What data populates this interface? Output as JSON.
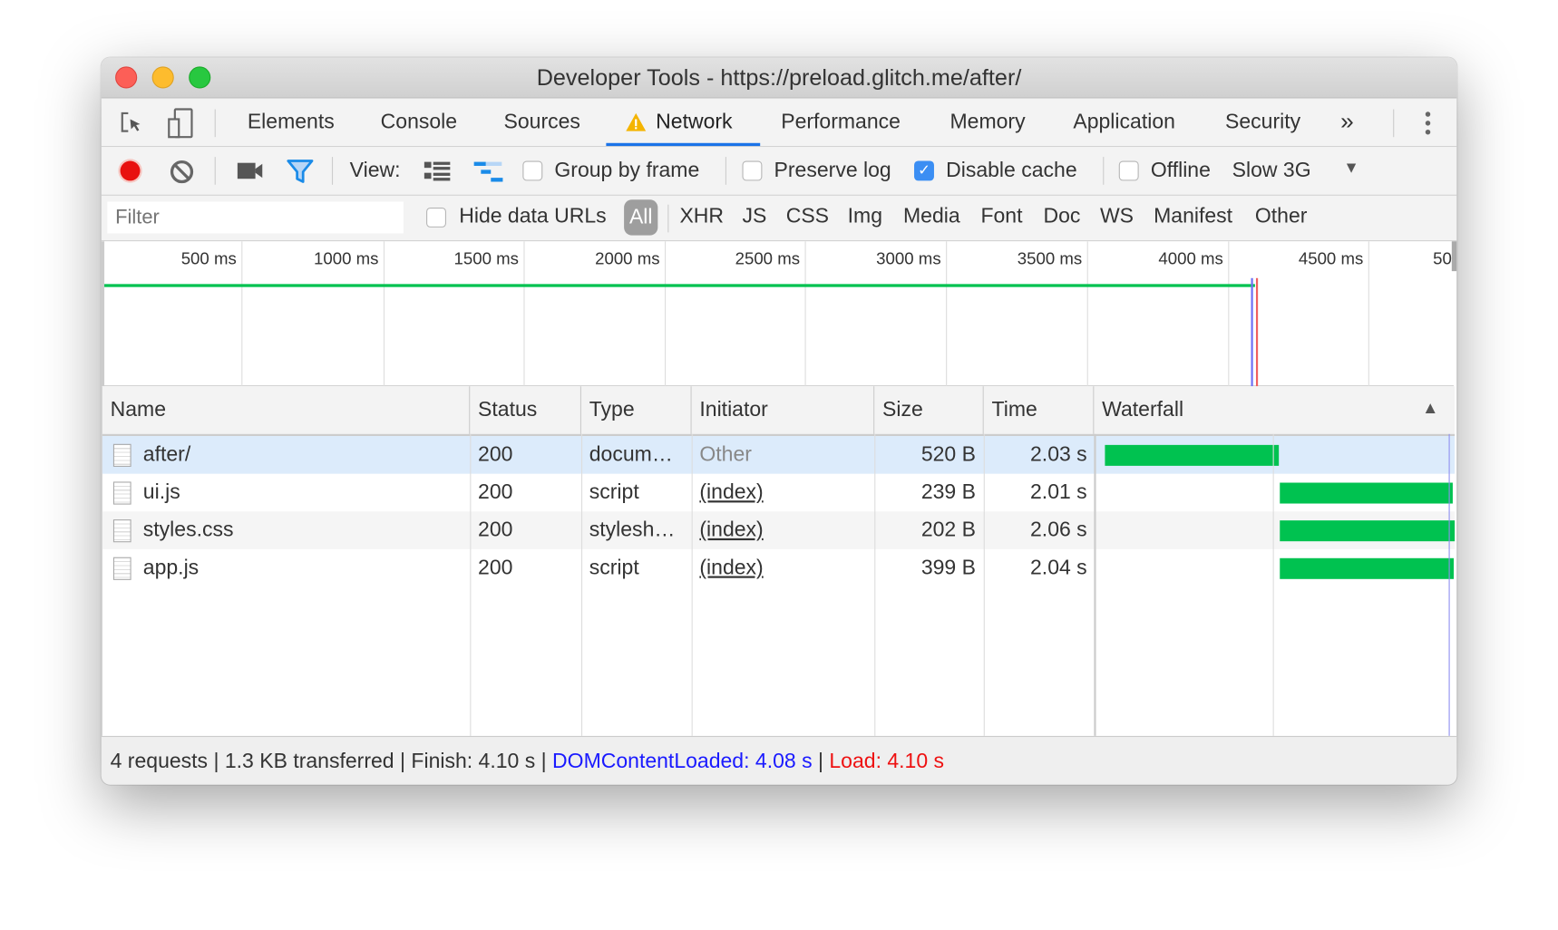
{
  "window": {
    "title": "Developer Tools - https://preload.glitch.me/after/"
  },
  "tabs": [
    {
      "label": "Elements"
    },
    {
      "label": "Console"
    },
    {
      "label": "Sources"
    },
    {
      "label": "Network",
      "active": true,
      "warning": true
    },
    {
      "label": "Performance"
    },
    {
      "label": "Memory"
    },
    {
      "label": "Application"
    },
    {
      "label": "Security"
    }
  ],
  "tabs_more": "»",
  "toolbar": {
    "view_label": "View:",
    "group_by_frame": {
      "label": "Group by frame",
      "checked": false
    },
    "preserve_log": {
      "label": "Preserve log",
      "checked": false
    },
    "disable_cache": {
      "label": "Disable cache",
      "checked": true
    },
    "offline": {
      "label": "Offline",
      "checked": false
    },
    "throttling": "Slow 3G"
  },
  "filter": {
    "placeholder": "Filter",
    "hide_data_urls": {
      "label": "Hide data URLs",
      "checked": false
    },
    "types": [
      "All",
      "XHR",
      "JS",
      "CSS",
      "Img",
      "Media",
      "Font",
      "Doc",
      "WS",
      "Manifest",
      "Other"
    ],
    "active_type": "All"
  },
  "overview": {
    "ticks": [
      "500 ms",
      "1000 ms",
      "1500 ms",
      "2000 ms",
      "2500 ms",
      "3000 ms",
      "3500 ms",
      "4000 ms",
      "4500 ms",
      "50"
    ]
  },
  "table": {
    "columns": [
      "Name",
      "Status",
      "Type",
      "Initiator",
      "Size",
      "Time",
      "Waterfall"
    ],
    "rows": [
      {
        "name": "after/",
        "status": "200",
        "type": "docum…",
        "initiator": "Other",
        "size": "520 B",
        "time": "2.03 s",
        "selected": true
      },
      {
        "name": "ui.js",
        "status": "200",
        "type": "script",
        "initiator": "(index)",
        "size": "239 B",
        "time": "2.01 s"
      },
      {
        "name": "styles.css",
        "status": "200",
        "type": "stylesh…",
        "initiator": "(index)",
        "size": "202 B",
        "time": "2.06 s"
      },
      {
        "name": "app.js",
        "status": "200",
        "type": "script",
        "initiator": "(index)",
        "size": "399 B",
        "time": "2.04 s"
      }
    ]
  },
  "status_bar": {
    "requests": "4 requests",
    "transferred": "1.3 KB transferred",
    "finish": "Finish: 4.10 s",
    "dom_content_loaded": "DOMContentLoaded: 4.08 s",
    "load": "Load: 4.10 s",
    "separator": "|"
  },
  "colors": {
    "accent": "#1a73e8",
    "record": "#e8110f",
    "bar": "#00c250",
    "dcl": "#1a1aff",
    "load": "#ee1111",
    "selected_row": "#dcebfb"
  }
}
